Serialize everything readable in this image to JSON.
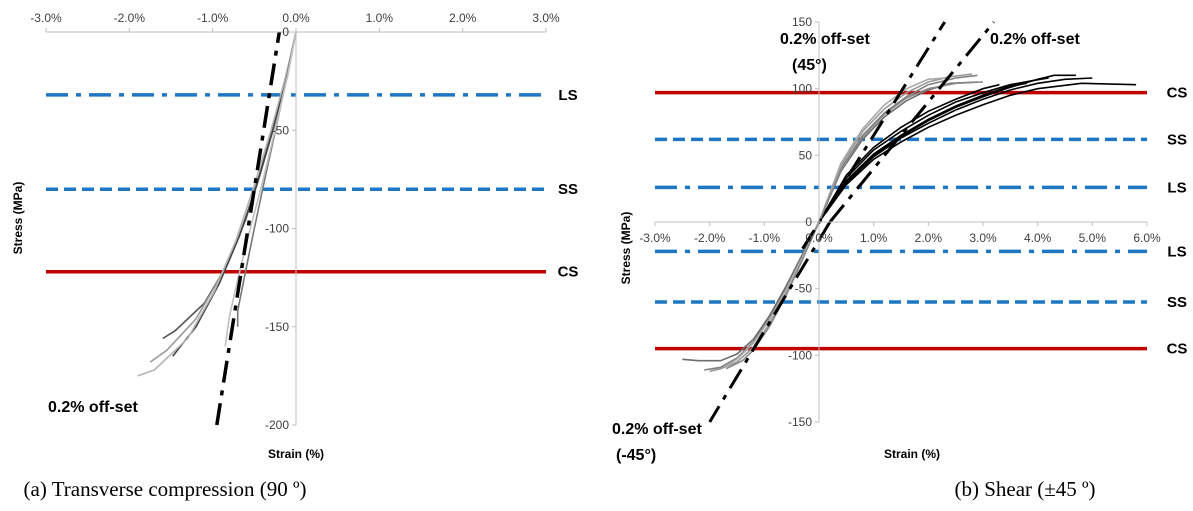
{
  "chart_data": [
    {
      "type": "line",
      "caption": "(a) Transverse compression (90 º)",
      "xlabel": "Strain (%)",
      "ylabel": "Stress (MPa)",
      "xlim": [
        -3.0,
        3.0
      ],
      "ylim": [
        -200,
        0
      ],
      "x_ticks": [
        "-3.0%",
        "-2.0%",
        "-1.0%",
        "0.0%",
        "1.0%",
        "2.0%",
        "3.0%"
      ],
      "y_ticks": [
        "0",
        "-50",
        "-100",
        "-150",
        "-200"
      ],
      "reference_lines": [
        {
          "label": "LS",
          "value": -32,
          "style": "dashdot",
          "color": "#1f77c4"
        },
        {
          "label": "SS",
          "value": -80,
          "style": "dashed",
          "color": "#1f77c4"
        },
        {
          "label": "CS",
          "value": -122,
          "style": "solid",
          "color": "#c00000"
        }
      ],
      "offset_line": {
        "label": "0.2% off-set",
        "points": [
          [
            -0.95,
            -200
          ],
          [
            -0.2,
            0
          ]
        ]
      },
      "series": [
        {
          "color": "#555555",
          "points": [
            [
              0.0,
              0
            ],
            [
              -0.1,
              -20
            ],
            [
              -0.25,
              -45
            ],
            [
              -0.42,
              -70
            ],
            [
              -0.6,
              -95
            ],
            [
              -0.82,
              -118
            ],
            [
              -1.1,
              -138
            ],
            [
              -1.45,
              -152
            ],
            [
              -1.6,
              -156
            ]
          ]
        },
        {
          "color": "#999999",
          "points": [
            [
              0.0,
              0
            ],
            [
              -0.1,
              -22
            ],
            [
              -0.26,
              -48
            ],
            [
              -0.44,
              -74
            ],
            [
              -0.65,
              -100
            ],
            [
              -0.9,
              -124
            ],
            [
              -1.2,
              -146
            ],
            [
              -1.55,
              -162
            ],
            [
              -1.75,
              -168
            ]
          ]
        },
        {
          "color": "#444444",
          "points": [
            [
              0.0,
              0
            ],
            [
              -0.12,
              -24
            ],
            [
              -0.28,
              -50
            ],
            [
              -0.47,
              -78
            ],
            [
              -0.68,
              -104
            ],
            [
              -0.92,
              -128
            ],
            [
              -1.2,
              -150
            ],
            [
              -1.48,
              -165
            ]
          ]
        },
        {
          "color": "#b5b5b5",
          "points": [
            [
              0.0,
              0
            ],
            [
              -0.12,
              -22
            ],
            [
              -0.3,
              -50
            ],
            [
              -0.5,
              -78
            ],
            [
              -0.72,
              -106
            ],
            [
              -0.98,
              -132
            ],
            [
              -1.3,
              -156
            ],
            [
              -1.7,
              -172
            ],
            [
              -1.9,
              -175
            ]
          ]
        },
        {
          "color": "#777777",
          "points": [
            [
              0.0,
              0
            ],
            [
              -0.1,
              -20
            ],
            [
              -0.22,
              -45
            ],
            [
              -0.36,
              -72
            ],
            [
              -0.5,
              -100
            ],
            [
              -0.62,
              -125
            ],
            [
              -0.7,
              -142
            ],
            [
              -0.7,
              -150
            ]
          ]
        },
        {
          "color": "#c0c0c0",
          "points": [
            [
              0.0,
              0
            ],
            [
              -0.1,
              -22
            ],
            [
              -0.24,
              -48
            ],
            [
              -0.4,
              -76
            ],
            [
              -0.56,
              -102
            ],
            [
              -0.7,
              -126
            ],
            [
              -0.8,
              -145
            ],
            [
              -0.85,
              -160
            ]
          ]
        }
      ]
    },
    {
      "type": "line",
      "caption": "(b) Shear (±45 º)",
      "xlabel": "Strain (%)",
      "ylabel": "Stress (MPa)",
      "xlim": [
        -3.0,
        6.0
      ],
      "ylim": [
        -150,
        150
      ],
      "x_ticks": [
        "-3.0%",
        "-2.0%",
        "-1.0%",
        "0.0%",
        "1.0%",
        "2.0%",
        "3.0%",
        "4.0%",
        "5.0%",
        "6.0%"
      ],
      "y_ticks": [
        "150",
        "100",
        "50",
        "0",
        "-50",
        "-100",
        "-150"
      ],
      "reference_lines": [
        {
          "label": "CS",
          "value": 97,
          "style": "solid",
          "color": "#c00000"
        },
        {
          "label": "SS",
          "value": 62,
          "style": "dashed",
          "color": "#1f77c4"
        },
        {
          "label": "LS",
          "value": 26,
          "style": "dashdot",
          "color": "#1f77c4"
        },
        {
          "label": "LS",
          "value": -22,
          "style": "dashdot",
          "color": "#1f77c4"
        },
        {
          "label": "SS",
          "value": -60,
          "style": "dashed",
          "color": "#1f77c4"
        },
        {
          "label": "CS",
          "value": -95,
          "style": "solid",
          "color": "#c00000"
        }
      ],
      "offset_lines": [
        {
          "label": "0.2% off-set\n(45°)",
          "points": [
            [
              -0.3,
              -20
            ],
            [
              2.3,
              150
            ]
          ]
        },
        {
          "label": "0.2% off-set",
          "points": [
            [
              0.2,
              0
            ],
            [
              3.2,
              150
            ]
          ]
        },
        {
          "label": "0.2% off-set\n(-45°)",
          "points": [
            [
              0.2,
              0
            ],
            [
              -2.0,
              -150
            ]
          ]
        }
      ],
      "series_positive": [
        {
          "color": "#000000",
          "points": [
            [
              0,
              0
            ],
            [
              0.5,
              30
            ],
            [
              1.0,
              50
            ],
            [
              1.5,
              64
            ],
            [
              2.0,
              76
            ],
            [
              2.5,
              86
            ],
            [
              3.0,
              94
            ],
            [
              3.5,
              101
            ],
            [
              4.0,
              107
            ],
            [
              4.3,
              110
            ],
            [
              4.7,
              110
            ]
          ]
        },
        {
          "color": "#000000",
          "points": [
            [
              0,
              0
            ],
            [
              0.5,
              33
            ],
            [
              1.0,
              54
            ],
            [
              1.5,
              68
            ],
            [
              2.0,
              80
            ],
            [
              2.5,
              90
            ],
            [
              3.0,
              97
            ],
            [
              3.5,
              103
            ],
            [
              3.9,
              106
            ],
            [
              4.2,
              108
            ]
          ]
        },
        {
          "color": "#000000",
          "points": [
            [
              0,
              0
            ],
            [
              0.5,
              28
            ],
            [
              1.0,
              47
            ],
            [
              1.5,
              60
            ],
            [
              2.0,
              71
            ],
            [
              2.5,
              80
            ],
            [
              3.0,
              88
            ],
            [
              3.5,
              95
            ],
            [
              4.0,
              100
            ],
            [
              4.8,
              104
            ],
            [
              5.8,
              103
            ]
          ]
        },
        {
          "color": "#000000",
          "points": [
            [
              0,
              0
            ],
            [
              0.5,
              31
            ],
            [
              1.0,
              51
            ],
            [
              1.5,
              65
            ],
            [
              2.0,
              77
            ],
            [
              2.5,
              87
            ],
            [
              3.0,
              95
            ],
            [
              3.5,
              102
            ],
            [
              3.8,
              104
            ]
          ]
        },
        {
          "color": "#000000",
          "points": [
            [
              0,
              0
            ],
            [
              0.5,
              35
            ],
            [
              1.0,
              56
            ],
            [
              1.5,
              71
            ],
            [
              2.0,
              83
            ],
            [
              2.5,
              92
            ],
            [
              3.0,
              100
            ],
            [
              3.3,
              103
            ]
          ]
        },
        {
          "color": "#000000",
          "points": [
            [
              0,
              0
            ],
            [
              0.5,
              29
            ],
            [
              1.0,
              49
            ],
            [
              1.5,
              63
            ],
            [
              2.0,
              74
            ],
            [
              2.5,
              84
            ],
            [
              3.0,
              92
            ],
            [
              3.5,
              99
            ],
            [
              4.0,
              104
            ],
            [
              4.5,
              107
            ],
            [
              5.0,
              108
            ]
          ]
        },
        {
          "color": "#808080",
          "points": [
            [
              0,
              0
            ],
            [
              0.4,
              40
            ],
            [
              0.8,
              65
            ],
            [
              1.2,
              82
            ],
            [
              1.6,
              94
            ],
            [
              2.0,
              103
            ],
            [
              2.5,
              108
            ],
            [
              2.9,
              110
            ]
          ]
        },
        {
          "color": "#9a9a9a",
          "points": [
            [
              0,
              0
            ],
            [
              0.4,
              42
            ],
            [
              0.8,
              68
            ],
            [
              1.2,
              85
            ],
            [
              1.6,
              97
            ],
            [
              2.0,
              105
            ],
            [
              2.4,
              109
            ],
            [
              2.8,
              111
            ]
          ]
        },
        {
          "color": "#6e6e6e",
          "points": [
            [
              0,
              0
            ],
            [
              0.4,
              38
            ],
            [
              0.8,
              62
            ],
            [
              1.2,
              79
            ],
            [
              1.6,
              91
            ],
            [
              2.0,
              99
            ],
            [
              2.4,
              104
            ],
            [
              2.9,
              105
            ]
          ]
        },
        {
          "color": "#a8a8a8",
          "points": [
            [
              0,
              0
            ],
            [
              0.4,
              44
            ],
            [
              0.8,
              70
            ],
            [
              1.2,
              88
            ],
            [
              1.6,
              100
            ],
            [
              2.0,
              107
            ],
            [
              2.3,
              108
            ]
          ]
        },
        {
          "color": "#888888",
          "points": [
            [
              0,
              0
            ],
            [
              0.4,
              39
            ],
            [
              0.8,
              64
            ],
            [
              1.2,
              81
            ],
            [
              1.6,
              93
            ],
            [
              2.0,
              100
            ],
            [
              2.5,
              104
            ],
            [
              3.0,
              105
            ]
          ]
        }
      ],
      "series_negative": [
        {
          "color": "#808080",
          "points": [
            [
              0,
              0
            ],
            [
              -0.3,
              -25
            ],
            [
              -0.6,
              -50
            ],
            [
              -0.9,
              -72
            ],
            [
              -1.2,
              -90
            ],
            [
              -1.5,
              -102
            ],
            [
              -1.8,
              -109
            ],
            [
              -2.1,
              -111
            ]
          ]
        },
        {
          "color": "#9a9a9a",
          "points": [
            [
              0,
              0
            ],
            [
              -0.3,
              -27
            ],
            [
              -0.6,
              -53
            ],
            [
              -0.9,
              -76
            ],
            [
              -1.2,
              -94
            ],
            [
              -1.5,
              -105
            ],
            [
              -1.8,
              -110
            ],
            [
              -2.0,
              -112
            ]
          ]
        },
        {
          "color": "#6e6e6e",
          "points": [
            [
              0,
              0
            ],
            [
              -0.3,
              -24
            ],
            [
              -0.6,
              -48
            ],
            [
              -0.9,
              -70
            ],
            [
              -1.2,
              -88
            ],
            [
              -1.5,
              -99
            ],
            [
              -1.8,
              -104
            ],
            [
              -2.2,
              -104
            ],
            [
              -2.5,
              -103
            ]
          ]
        },
        {
          "color": "#b0b0b0",
          "points": [
            [
              0,
              0
            ],
            [
              -0.3,
              -26
            ],
            [
              -0.6,
              -51
            ],
            [
              -0.9,
              -73
            ],
            [
              -1.2,
              -91
            ],
            [
              -1.5,
              -103
            ],
            [
              -1.7,
              -108
            ]
          ]
        },
        {
          "color": "#888888",
          "points": [
            [
              0,
              0
            ],
            [
              -0.3,
              -28
            ],
            [
              -0.6,
              -55
            ],
            [
              -0.9,
              -78
            ],
            [
              -1.2,
              -96
            ],
            [
              -1.4,
              -104
            ],
            [
              -1.7,
              -110
            ]
          ]
        }
      ]
    }
  ]
}
